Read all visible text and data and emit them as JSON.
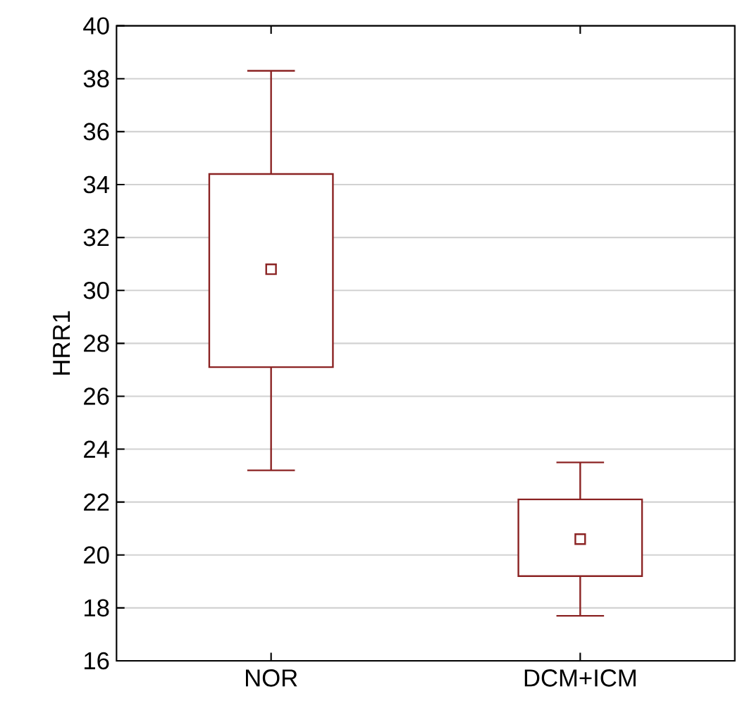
{
  "chart_data": {
    "type": "box",
    "ylabel": "HRR1",
    "categories": [
      "NOR",
      "DCM+ICM"
    ],
    "boxes": [
      {
        "low": 23.2,
        "q1": 27.1,
        "median": 30.8,
        "q3": 34.4,
        "high": 38.3
      },
      {
        "low": 17.7,
        "q1": 19.2,
        "median": 20.6,
        "q3": 22.1,
        "high": 23.5
      }
    ],
    "color": "#8b2323",
    "ylim": [
      16,
      40
    ],
    "yticks": [
      16,
      18,
      20,
      22,
      24,
      26,
      28,
      30,
      32,
      34,
      36,
      38,
      40
    ],
    "grid": "y",
    "marker": "square"
  }
}
